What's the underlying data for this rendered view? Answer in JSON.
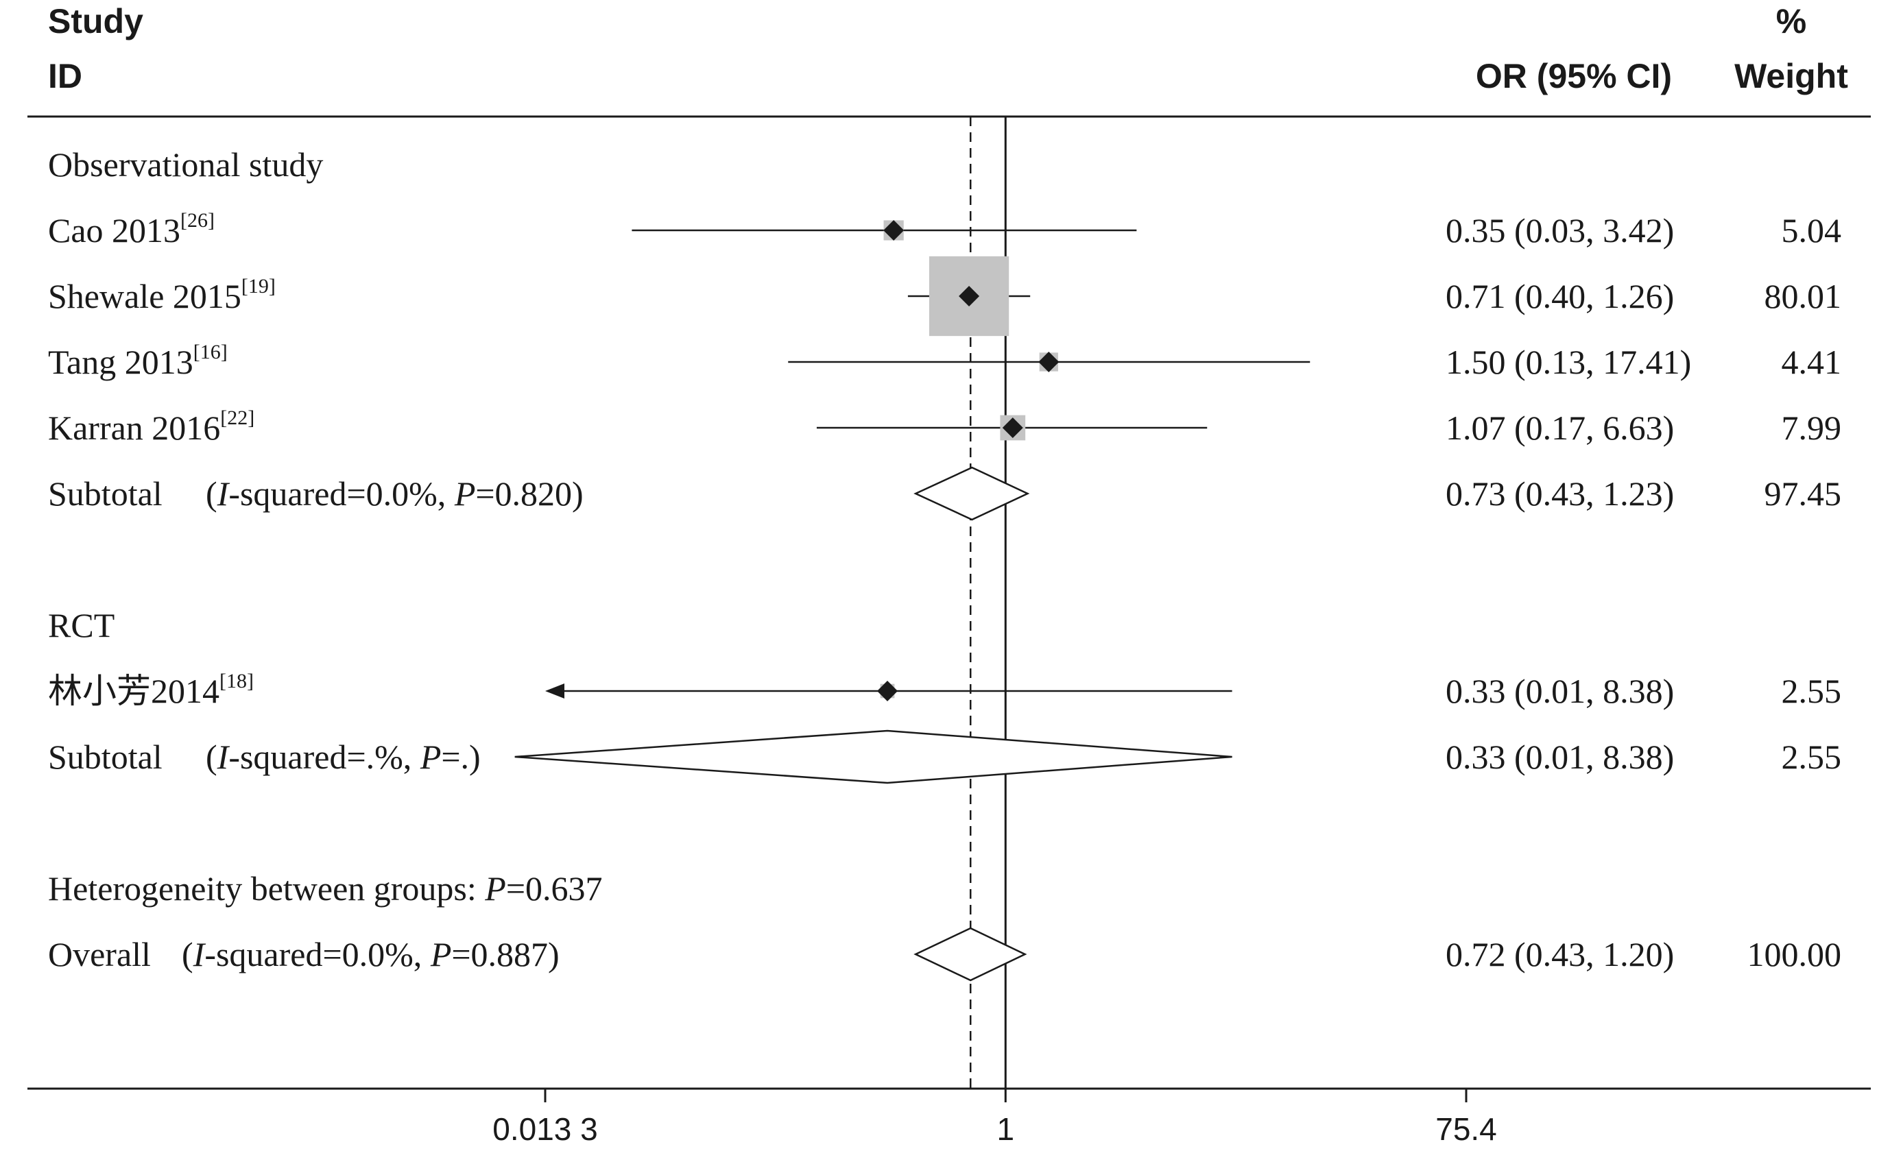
{
  "chart_data": {
    "type": "forest",
    "header": {
      "study_line1": "Study",
      "study_line2": "ID",
      "or_label": "OR (95% CI)",
      "weight_line1": "%",
      "weight_line2": "Weight"
    },
    "x_scale": "log",
    "x_range": [
      0.0133,
      75.4
    ],
    "x_ticks": [
      {
        "value": 0.0133,
        "label": "0.013 3"
      },
      {
        "value": 1,
        "label": "1"
      },
      {
        "value": 75.4,
        "label": "75.4"
      }
    ],
    "null_line": 1,
    "overall_line": 0.72,
    "rows": [
      {
        "kind": "group",
        "label": "Observational study"
      },
      {
        "kind": "study",
        "label": "Cao 2013",
        "ref": "[26]",
        "or": 0.35,
        "lo": 0.03,
        "hi": 3.42,
        "ci_text": "0.35 (0.03, 3.42)",
        "weight": 5.04,
        "weight_text": "5.04"
      },
      {
        "kind": "study",
        "label": "Shewale 2015",
        "ref": "[19]",
        "or": 0.71,
        "lo": 0.4,
        "hi": 1.26,
        "ci_text": "0.71 (0.40, 1.26)",
        "weight": 80.01,
        "weight_text": "80.01"
      },
      {
        "kind": "study",
        "label": "Tang 2013",
        "ref": "[16]",
        "or": 1.5,
        "lo": 0.13,
        "hi": 17.41,
        "ci_text": "1.50 (0.13, 17.41)",
        "weight": 4.41,
        "weight_text": "4.41"
      },
      {
        "kind": "study",
        "label": "Karran 2016",
        "ref": "[22]",
        "or": 1.07,
        "lo": 0.17,
        "hi": 6.63,
        "ci_text": "1.07 (0.17, 6.63)",
        "weight": 7.99,
        "weight_text": "7.99"
      },
      {
        "kind": "subtotal",
        "label": "Subtotal",
        "stats": [
          [
            "(",
            false
          ],
          [
            "I",
            true
          ],
          [
            "-squared=0.0%, ",
            false
          ],
          [
            "P",
            true
          ],
          [
            "=0.820)",
            false
          ]
        ],
        "or": 0.73,
        "lo": 0.43,
        "hi": 1.23,
        "ci_text": "0.73 (0.43, 1.23)",
        "weight_text": "97.45"
      },
      {
        "kind": "blank"
      },
      {
        "kind": "group",
        "label": "RCT"
      },
      {
        "kind": "study",
        "label": "林小芳2014",
        "ref": "[18]",
        "or": 0.33,
        "lo": 0.01,
        "hi": 8.38,
        "ci_text": "0.33 (0.01, 8.38)",
        "weight": 2.55,
        "weight_text": "2.55"
      },
      {
        "kind": "subtotal",
        "label": "Subtotal",
        "stats": [
          [
            "(",
            false
          ],
          [
            "I",
            true
          ],
          [
            "-squared=.%, ",
            false
          ],
          [
            "P",
            true
          ],
          [
            "=.)",
            false
          ]
        ],
        "or": 0.33,
        "lo": 0.01,
        "hi": 8.38,
        "ci_text": "0.33 (0.01, 8.38)",
        "weight_text": "2.55"
      },
      {
        "kind": "blank"
      },
      {
        "kind": "note",
        "parts": [
          [
            "Heterogeneity between groups: ",
            false
          ],
          [
            "P",
            true
          ],
          [
            "=0.637",
            false
          ]
        ]
      },
      {
        "kind": "overall",
        "label": "Overall",
        "stats": [
          [
            "(",
            false
          ],
          [
            "I",
            true
          ],
          [
            "-squared=0.0%, ",
            false
          ],
          [
            "P",
            true
          ],
          [
            "=0.887)",
            false
          ]
        ],
        "or": 0.72,
        "lo": 0.43,
        "hi": 1.2,
        "ci_text": "0.72 (0.43, 1.20)",
        "weight_text": "100.00"
      }
    ],
    "colors": {
      "text": "#1a1a1a",
      "line": "#1a1a1a",
      "weight_box": "#c4c4c4",
      "point": "#1a1a1a",
      "diamond_fill": "#ffffff"
    }
  }
}
